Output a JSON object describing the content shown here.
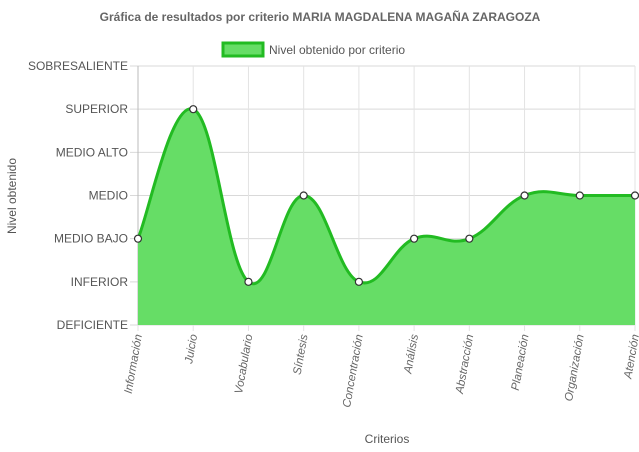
{
  "chart_data": {
    "type": "area",
    "title": "Gráfica de resultados por criterio MARIA MAGDALENA MAGAÑA ZARAGOZA",
    "xlabel": "Criterios",
    "ylabel": "Nivel obtenido",
    "y_levels": [
      "DEFICIENTE",
      "INFERIOR",
      "MEDIO BAJO",
      "MEDIO",
      "MEDIO ALTO",
      "SUPERIOR",
      "SOBRESALIENTE"
    ],
    "ylim": [
      0,
      6
    ],
    "categories": [
      "Información",
      "Juicio",
      "Vocabulario",
      "Síntesis",
      "Concentración",
      "Análisis",
      "Abstracción",
      "Planeación",
      "Organización",
      "Atención"
    ],
    "series": [
      {
        "name": "Nivel obtenido por criterio",
        "values": [
          2,
          5,
          1,
          3,
          1,
          2,
          2,
          3,
          3,
          3
        ]
      }
    ],
    "grid": true,
    "legend": "top-center",
    "colors": {
      "fill": "#66dd66",
      "line": "#22bb22",
      "point_fill": "#ffffff",
      "point_stroke": "#333333"
    }
  }
}
